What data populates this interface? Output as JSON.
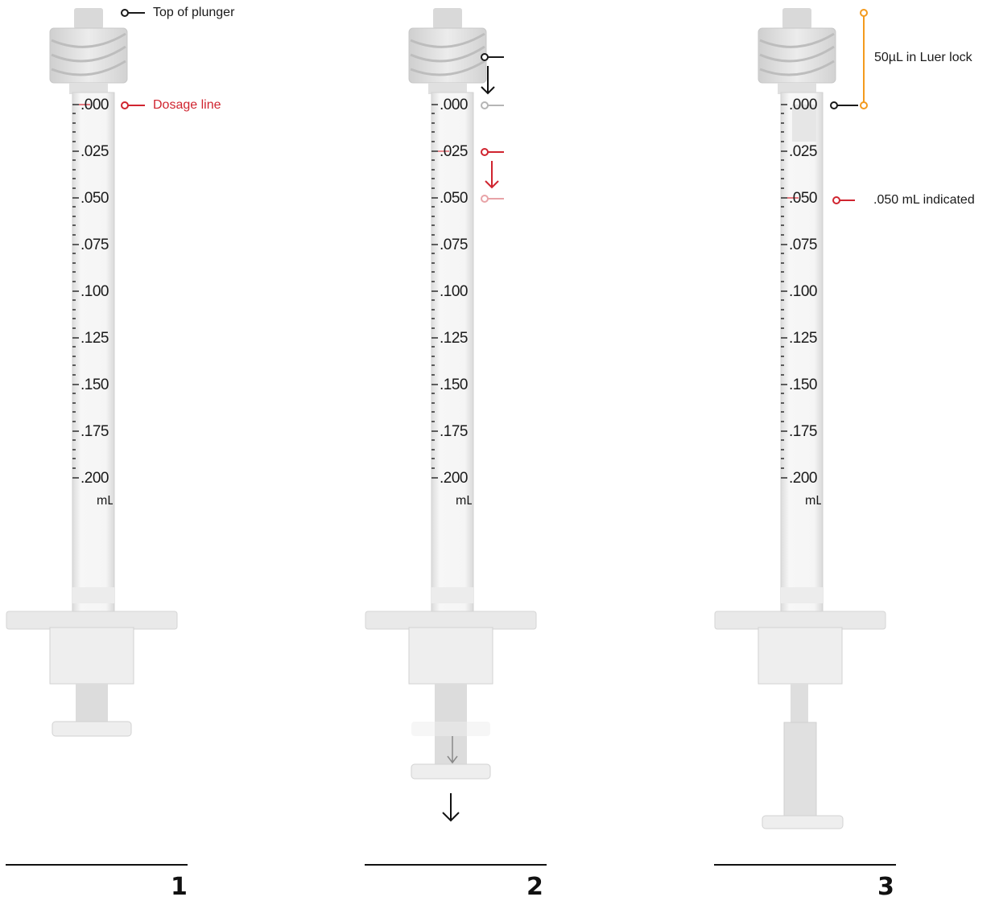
{
  "scale_labels": [
    ".000",
    ".025",
    ".050",
    ".075",
    ".100",
    ".125",
    ".150",
    ".175",
    ".200"
  ],
  "unit": "mL",
  "panels": [
    {
      "step": "1",
      "callouts": {
        "plunger_top": "Top of plunger",
        "dosage_line": "Dosage line"
      }
    },
    {
      "step": "2"
    },
    {
      "step": "3",
      "callouts": {
        "luer_lock": "50µL in Luer lock",
        "indicated": ".050 mL indicated"
      }
    }
  ],
  "colors": {
    "black": "#1a1a1a",
    "red": "#d0242f",
    "orange": "#f39a1e",
    "gray": "#b5b5b5"
  }
}
